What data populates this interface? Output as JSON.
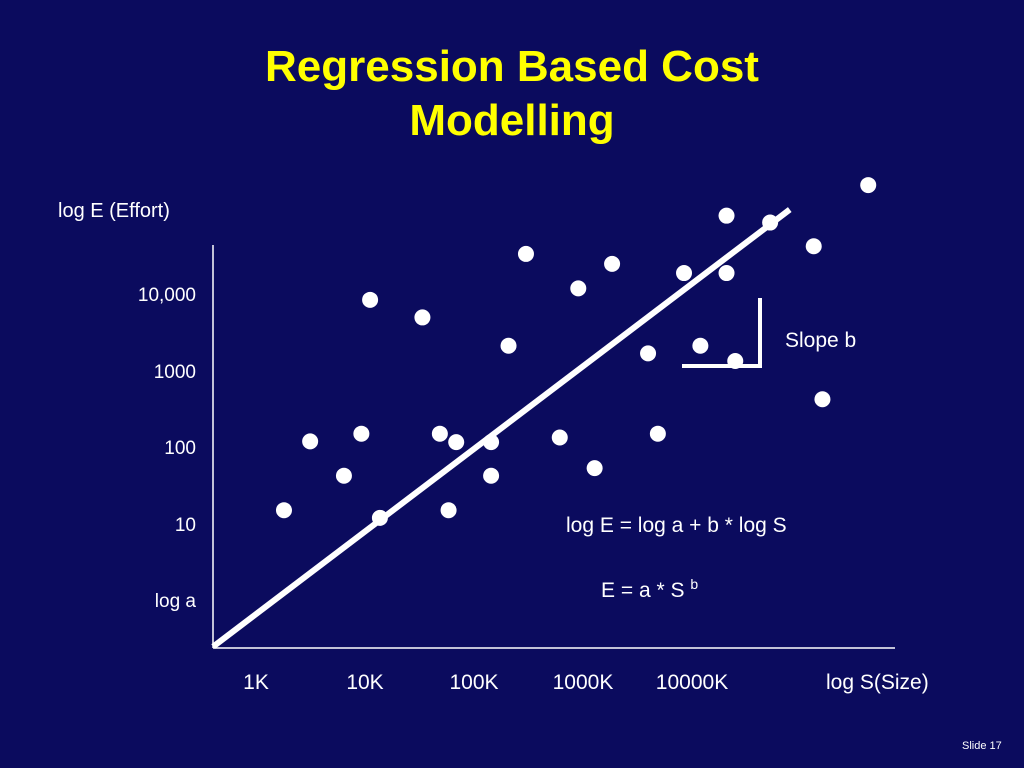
{
  "slide": {
    "title_line_1": "Regression Based Cost",
    "title_line_2": "Modelling",
    "footer": "Slide 17",
    "background_color": "#0b0b5e",
    "title_color": "#ffff00",
    "text_color": "#ffffff"
  },
  "chart_data": {
    "type": "scatter",
    "title": "Regression Based Cost Modelling",
    "ylabel": "log E (Effort)",
    "xlabel": "log S(Size)",
    "y_scale": "log",
    "x_scale": "log",
    "y_ticks": [
      {
        "label": "log a",
        "value": 0
      },
      {
        "label": "10",
        "value": 1
      },
      {
        "label": "100",
        "value": 2
      },
      {
        "label": "1000",
        "value": 3
      },
      {
        "label": "10,000",
        "value": 4
      }
    ],
    "x_ticks": [
      {
        "label": "1K",
        "value": 0
      },
      {
        "label": "10K",
        "value": 1
      },
      {
        "label": "100K",
        "value": 2
      },
      {
        "label": "1000K",
        "value": 3
      },
      {
        "label": "10000K",
        "value": 4
      }
    ],
    "xlim": [
      -0.4,
      5.9
    ],
    "ylim": [
      -0.55,
      4.7
    ],
    "grid": false,
    "points": [
      {
        "x": 0.11,
        "y": 1.2
      },
      {
        "x": 0.35,
        "y": 2.1
      },
      {
        "x": 0.66,
        "y": 1.65
      },
      {
        "x": 0.82,
        "y": 2.2
      },
      {
        "x": 0.9,
        "y": 3.95
      },
      {
        "x": 0.99,
        "y": 1.1
      },
      {
        "x": 1.38,
        "y": 3.72
      },
      {
        "x": 1.54,
        "y": 2.2
      },
      {
        "x": 1.62,
        "y": 1.2
      },
      {
        "x": 1.69,
        "y": 2.09
      },
      {
        "x": 2.01,
        "y": 1.65
      },
      {
        "x": 2.01,
        "y": 2.09
      },
      {
        "x": 2.17,
        "y": 3.35
      },
      {
        "x": 2.33,
        "y": 4.55
      },
      {
        "x": 2.64,
        "y": 2.15
      },
      {
        "x": 2.81,
        "y": 4.1
      },
      {
        "x": 2.96,
        "y": 1.75
      },
      {
        "x": 3.12,
        "y": 4.42
      },
      {
        "x": 3.45,
        "y": 3.25
      },
      {
        "x": 3.54,
        "y": 2.2
      },
      {
        "x": 3.78,
        "y": 4.3
      },
      {
        "x": 3.93,
        "y": 3.35
      },
      {
        "x": 4.17,
        "y": 5.05
      },
      {
        "x": 4.17,
        "y": 4.3
      },
      {
        "x": 4.25,
        "y": 3.15
      },
      {
        "x": 4.57,
        "y": 4.96
      },
      {
        "x": 4.97,
        "y": 4.65
      },
      {
        "x": 5.05,
        "y": 2.65
      },
      {
        "x": 5.47,
        "y": 5.45
      }
    ],
    "regression": {
      "intercept": 0,
      "slope": 1.08,
      "label": "Slope b"
    },
    "annotations": {
      "slope_label": "Slope b",
      "equation_1": "log E = log a + b * log S",
      "equation_2_base": "E = a * S ",
      "equation_2_superscript": "b"
    }
  }
}
